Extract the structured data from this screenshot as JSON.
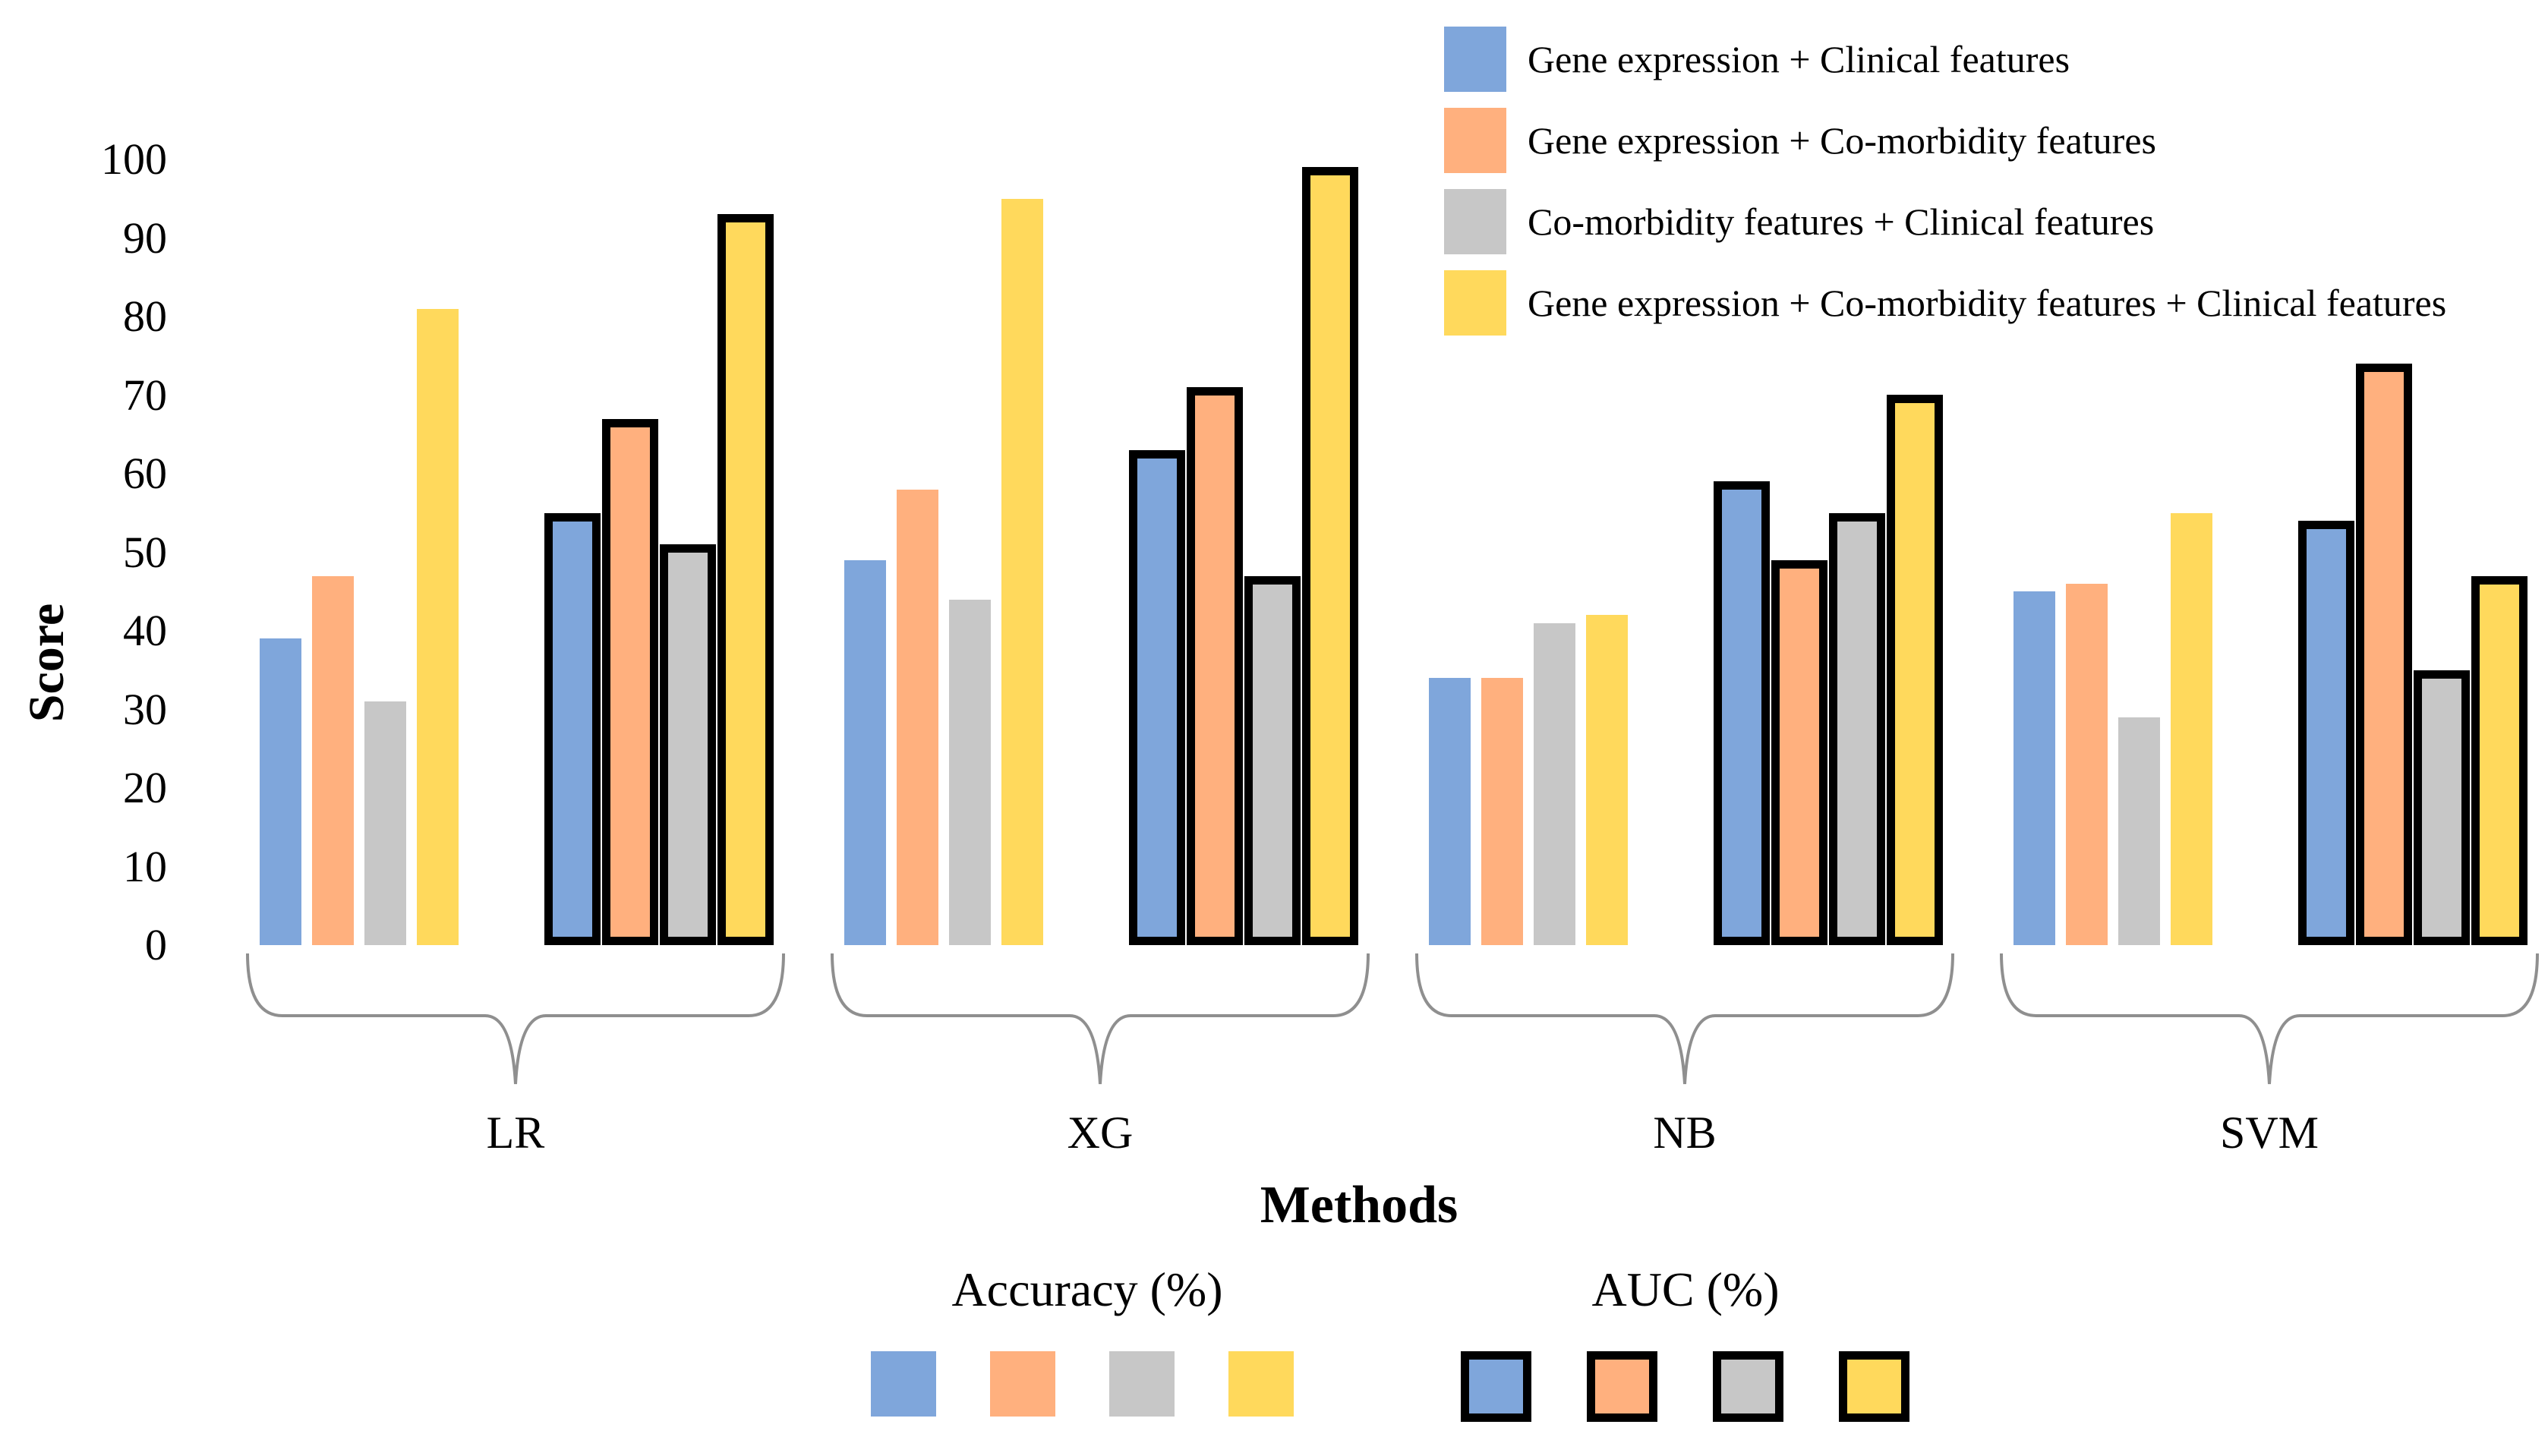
{
  "figure": {
    "y_axis": {
      "label": "Score",
      "ticks": [
        0,
        10,
        20,
        30,
        40,
        50,
        60,
        70,
        80,
        90,
        100
      ],
      "max": 100
    },
    "x_axis": {
      "label": "Methods"
    },
    "legend": {
      "items": [
        {
          "label": "Gene expression + Clinical features",
          "color": "#7FA6DB"
        },
        {
          "label": "Gene expression + Co-morbidity features",
          "color": "#FFB07E"
        },
        {
          "label": "Co-morbidity features + Clinical features",
          "color": "#C7C7C7"
        },
        {
          "label": "Gene expression + Co-morbidity features + Clinical features",
          "color": "#FFD95C"
        }
      ]
    },
    "metric_groups": [
      {
        "label": "Accuracy (%)",
        "outlined": false
      },
      {
        "label": "AUC (%)",
        "outlined": true
      }
    ],
    "brace_color": "#8f8f8f",
    "outline_color": "#000000"
  },
  "chart_data": {
    "type": "bar",
    "title": "",
    "xlabel": "Methods",
    "ylabel": "Score",
    "ylim": [
      0,
      100
    ],
    "yticks": [
      0,
      10,
      20,
      30,
      40,
      50,
      60,
      70,
      80,
      90,
      100
    ],
    "grid": false,
    "legend_position": "top-right",
    "categories": [
      "LR",
      "XG",
      "NB",
      "SVM"
    ],
    "series": [
      {
        "metric": "Accuracy (%)",
        "feature_set": "Gene expression + Clinical features",
        "color": "#7FA6DB",
        "outlined": false,
        "values": [
          39,
          49,
          34,
          45
        ]
      },
      {
        "metric": "Accuracy (%)",
        "feature_set": "Gene expression + Co-morbidity features",
        "color": "#FFB07E",
        "outlined": false,
        "values": [
          47,
          58,
          34,
          46
        ]
      },
      {
        "metric": "Accuracy (%)",
        "feature_set": "Co-morbidity features + Clinical features",
        "color": "#C7C7C7",
        "outlined": false,
        "values": [
          31,
          44,
          41,
          29
        ]
      },
      {
        "metric": "Accuracy (%)",
        "feature_set": "Gene expression + Co-morbidity features + Clinical features",
        "color": "#FFD95C",
        "outlined": false,
        "values": [
          81,
          95,
          42,
          55
        ]
      },
      {
        "metric": "AUC (%)",
        "feature_set": "Gene expression + Clinical features",
        "color": "#7FA6DB",
        "outlined": true,
        "values": [
          55,
          63,
          59,
          54
        ]
      },
      {
        "metric": "AUC (%)",
        "feature_set": "Gene expression + Co-morbidity features",
        "color": "#FFB07E",
        "outlined": true,
        "values": [
          67,
          71,
          49,
          74
        ]
      },
      {
        "metric": "AUC (%)",
        "feature_set": "Co-morbidity features + Clinical features",
        "color": "#C7C7C7",
        "outlined": true,
        "values": [
          51,
          47,
          55,
          35
        ]
      },
      {
        "metric": "AUC (%)",
        "feature_set": "Gene expression + Co-morbidity features + Clinical features",
        "color": "#FFD95C",
        "outlined": true,
        "values": [
          93,
          99,
          70,
          47
        ]
      }
    ]
  }
}
